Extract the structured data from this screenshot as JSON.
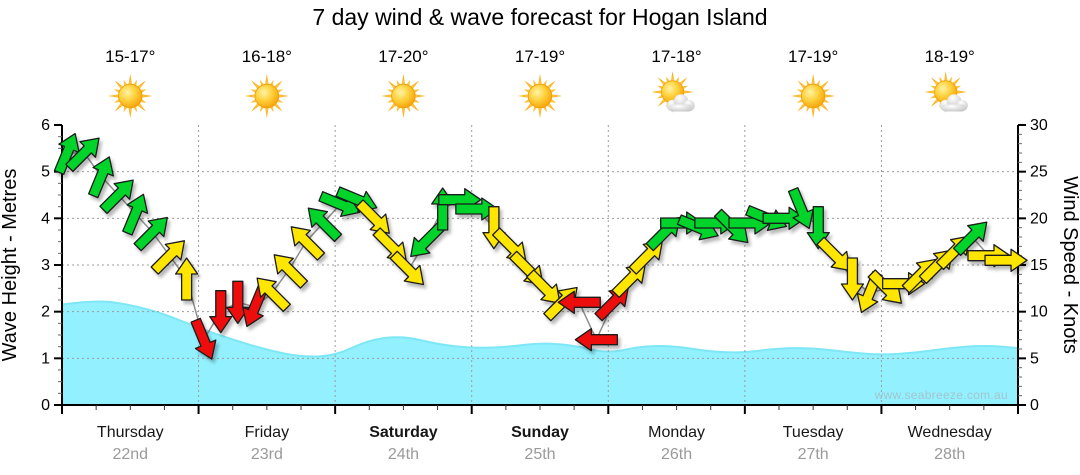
{
  "title": "7 day wind & wave forecast for Hogan Island",
  "watermark": "www.seabreeze.com.au",
  "chart_data": {
    "type": "line",
    "title": "7 day wind & wave forecast for Hogan Island",
    "left_axis": {
      "label": "Wave Height - Metres",
      "units": "m",
      "range": [
        0,
        6
      ],
      "ticks": [
        0,
        1,
        2,
        3,
        4,
        5,
        6
      ]
    },
    "right_axis": {
      "label": "Wind Speed - Knots",
      "units": "knots",
      "range": [
        0,
        30
      ],
      "ticks": [
        0,
        5,
        10,
        15,
        20,
        25,
        30
      ]
    },
    "grid": "dotted",
    "legend_position": "none",
    "days": [
      {
        "name": "Thursday",
        "date": "22nd",
        "temp": "15-17°",
        "icon": "sunny",
        "weekend": false
      },
      {
        "name": "Friday",
        "date": "23rd",
        "temp": "16-18°",
        "icon": "sunny",
        "weekend": false
      },
      {
        "name": "Saturday",
        "date": "24th",
        "temp": "17-20°",
        "icon": "sunny",
        "weekend": true
      },
      {
        "name": "Sunday",
        "date": "25th",
        "temp": "17-19°",
        "icon": "sunny",
        "weekend": true
      },
      {
        "name": "Monday",
        "date": "26th",
        "temp": "17-18°",
        "icon": "partly-cloudy",
        "weekend": false
      },
      {
        "name": "Tuesday",
        "date": "27th",
        "temp": "17-19°",
        "icon": "sunny",
        "weekend": false
      },
      {
        "name": "Wednesday",
        "date": "28th",
        "temp": "18-19°",
        "icon": "partly-cloudy",
        "weekend": false
      }
    ],
    "wind_series": {
      "name": "Wind speed and direction",
      "units": "knots",
      "points_per_day": 8,
      "points": [
        {
          "kn": 27,
          "dir": "NNE",
          "c": "green"
        },
        {
          "kn": 27,
          "dir": "NE",
          "c": "green"
        },
        {
          "kn": 24.5,
          "dir": "NNE",
          "c": "green"
        },
        {
          "kn": 22.5,
          "dir": "NE",
          "c": "green"
        },
        {
          "kn": 20.5,
          "dir": "NNE",
          "c": "green"
        },
        {
          "kn": 18.5,
          "dir": "NE",
          "c": "green"
        },
        {
          "kn": 16,
          "dir": "NE",
          "c": "yellow"
        },
        {
          "kn": 13.5,
          "dir": "N",
          "c": "yellow"
        },
        {
          "kn": 7,
          "dir": "SSE",
          "c": "red"
        },
        {
          "kn": 10,
          "dir": "S",
          "c": "red"
        },
        {
          "kn": 11,
          "dir": "S",
          "c": "red"
        },
        {
          "kn": 10.5,
          "dir": "SSW",
          "c": "red"
        },
        {
          "kn": 12,
          "dir": "NW",
          "c": "yellow"
        },
        {
          "kn": 14.5,
          "dir": "NW",
          "c": "yellow"
        },
        {
          "kn": 17.5,
          "dir": "NW",
          "c": "yellow"
        },
        {
          "kn": 19.5,
          "dir": "NW",
          "c": "green"
        },
        {
          "kn": 21.5,
          "dir": "ESE",
          "c": "green"
        },
        {
          "kn": 22,
          "dir": "ESE",
          "c": "green"
        },
        {
          "kn": 20,
          "dir": "SE",
          "c": "yellow"
        },
        {
          "kn": 17,
          "dir": "SE",
          "c": "yellow"
        },
        {
          "kn": 14.5,
          "dir": "SE",
          "c": "yellow"
        },
        {
          "kn": 17.5,
          "dir": "SW",
          "c": "green"
        },
        {
          "kn": 21,
          "dir": "N",
          "c": "green"
        },
        {
          "kn": 22,
          "dir": "E",
          "c": "green"
        },
        {
          "kn": 21,
          "dir": "E",
          "c": "green"
        },
        {
          "kn": 19,
          "dir": "S",
          "c": "yellow"
        },
        {
          "kn": 17,
          "dir": "SE",
          "c": "yellow"
        },
        {
          "kn": 14.5,
          "dir": "SE",
          "c": "yellow"
        },
        {
          "kn": 12.5,
          "dir": "SE",
          "c": "yellow"
        },
        {
          "kn": 11,
          "dir": "NE",
          "c": "yellow"
        },
        {
          "kn": 11,
          "dir": "W",
          "c": "red"
        },
        {
          "kn": 7,
          "dir": "W",
          "c": "red"
        },
        {
          "kn": 11,
          "dir": "NE",
          "c": "red"
        },
        {
          "kn": 13.5,
          "dir": "NE",
          "c": "yellow"
        },
        {
          "kn": 16,
          "dir": "NE",
          "c": "yellow"
        },
        {
          "kn": 18.5,
          "dir": "NE",
          "c": "green"
        },
        {
          "kn": 19.5,
          "dir": "E",
          "c": "green"
        },
        {
          "kn": 19,
          "dir": "ESE",
          "c": "green"
        },
        {
          "kn": 19.5,
          "dir": "E",
          "c": "green"
        },
        {
          "kn": 19,
          "dir": "SE",
          "c": "green"
        },
        {
          "kn": 19.5,
          "dir": "E",
          "c": "green"
        },
        {
          "kn": 20,
          "dir": "ESE",
          "c": "green"
        },
        {
          "kn": 20,
          "dir": "E",
          "c": "green"
        },
        {
          "kn": 21,
          "dir": "SSE",
          "c": "green"
        },
        {
          "kn": 19,
          "dir": "S",
          "c": "green"
        },
        {
          "kn": 16,
          "dir": "SE",
          "c": "yellow"
        },
        {
          "kn": 13.5,
          "dir": "S",
          "c": "yellow"
        },
        {
          "kn": 12,
          "dir": "SSW",
          "c": "yellow"
        },
        {
          "kn": 12.5,
          "dir": "SE",
          "c": "yellow"
        },
        {
          "kn": 13,
          "dir": "E",
          "c": "yellow"
        },
        {
          "kn": 14,
          "dir": "NE",
          "c": "yellow"
        },
        {
          "kn": 15,
          "dir": "NE",
          "c": "yellow"
        },
        {
          "kn": 16.5,
          "dir": "NE",
          "c": "yellow"
        },
        {
          "kn": 18,
          "dir": "NE",
          "c": "green"
        },
        {
          "kn": 16,
          "dir": "E",
          "c": "yellow"
        },
        {
          "kn": 15.5,
          "dir": "E",
          "c": "yellow"
        }
      ]
    },
    "wave_series": {
      "name": "Wave height",
      "units": "m",
      "points_per_day": 4,
      "values": [
        2.15,
        2.25,
        2.15,
        1.95,
        1.65,
        1.4,
        1.18,
        1.03,
        1.05,
        1.4,
        1.48,
        1.3,
        1.22,
        1.24,
        1.33,
        1.28,
        1.1,
        1.27,
        1.26,
        1.14,
        1.12,
        1.22,
        1.22,
        1.13,
        1.07,
        1.12,
        1.22,
        1.28,
        1.22
      ]
    },
    "colors": {
      "green": "#00d42a",
      "yellow": "#ffe600",
      "red": "#ee1111",
      "wave_fill": "#93f1ff",
      "wave_line": "#7ee7f6",
      "grid": "#9c9c9c",
      "axis": "#000000",
      "day_label": "#161616",
      "date_label": "#9a9a9a"
    }
  }
}
